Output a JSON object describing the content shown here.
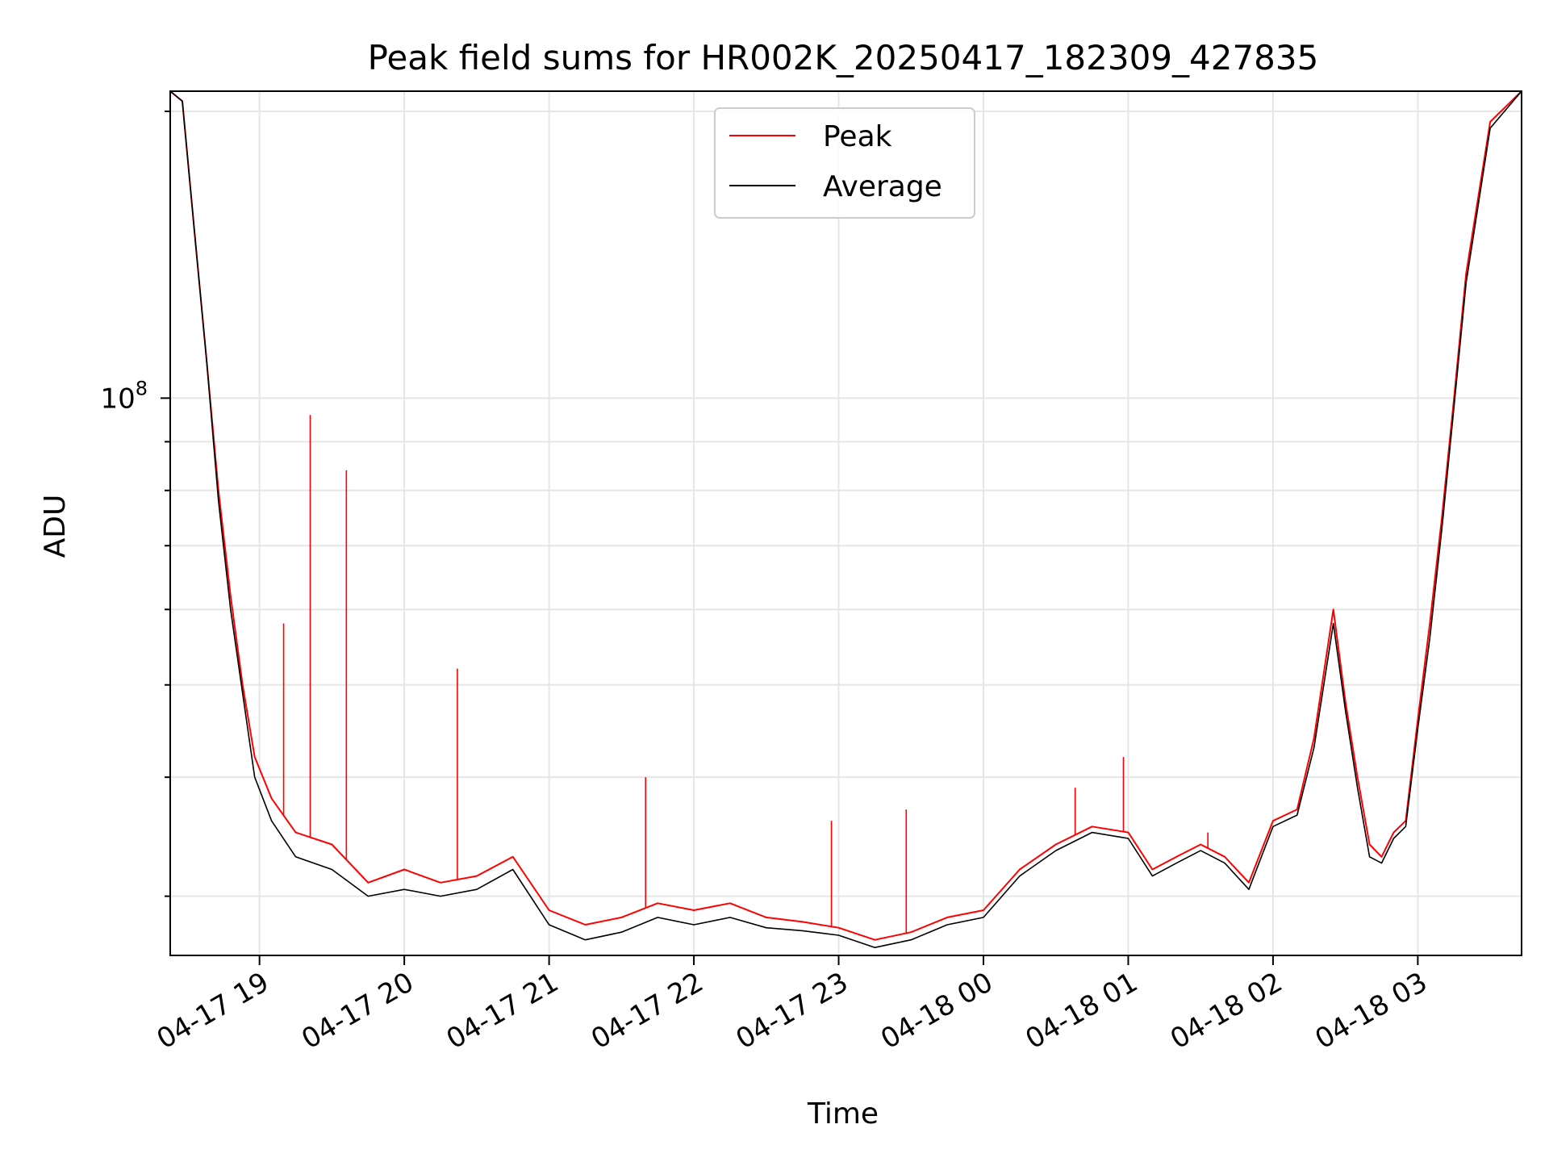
{
  "chart_data": {
    "type": "line",
    "title": "Peak field sums for HR002K_20250417_182309_427835",
    "xlabel": "Time",
    "ylabel": "ADU",
    "y_scale": "log",
    "y_major_tick_label_base": "10",
    "y_major_tick_label_exp": "8",
    "ylim": [
      26000000,
      210000000
    ],
    "xlim": [
      "2025-04-17 18:23",
      "2025-04-18 03:43"
    ],
    "x_tick_labels": [
      "04-17 19",
      "04-17 20",
      "04-17 21",
      "04-17 22",
      "04-17 23",
      "04-18 00",
      "04-18 01",
      "04-18 02",
      "04-18 03"
    ],
    "x_ticks": [
      "2025-04-17 19:00",
      "2025-04-17 20:00",
      "2025-04-17 21:00",
      "2025-04-17 22:00",
      "2025-04-17 23:00",
      "2025-04-18 00:00",
      "2025-04-18 01:00",
      "2025-04-18 02:00",
      "2025-04-18 03:00"
    ],
    "grid": true,
    "legend_position": "top-center",
    "series": [
      {
        "name": "Peak",
        "color": "#ff0000",
        "x": [
          "2025-04-17 18:23",
          "2025-04-17 18:28",
          "2025-04-17 18:33",
          "2025-04-17 18:38",
          "2025-04-17 18:43",
          "2025-04-17 18:48",
          "2025-04-17 18:53",
          "2025-04-17 18:58",
          "2025-04-17 19:05",
          "2025-04-17 19:15",
          "2025-04-17 19:30",
          "2025-04-17 19:45",
          "2025-04-17 20:00",
          "2025-04-17 20:15",
          "2025-04-17 20:30",
          "2025-04-17 20:45",
          "2025-04-17 21:00",
          "2025-04-17 21:15",
          "2025-04-17 21:30",
          "2025-04-17 21:45",
          "2025-04-17 22:00",
          "2025-04-17 22:15",
          "2025-04-17 22:30",
          "2025-04-17 22:45",
          "2025-04-17 23:00",
          "2025-04-17 23:15",
          "2025-04-17 23:30",
          "2025-04-17 23:45",
          "2025-04-18 00:00",
          "2025-04-18 00:15",
          "2025-04-18 00:30",
          "2025-04-18 00:45",
          "2025-04-18 01:00",
          "2025-04-18 01:10",
          "2025-04-18 01:20",
          "2025-04-18 01:30",
          "2025-04-18 01:40",
          "2025-04-18 01:50",
          "2025-04-18 02:00",
          "2025-04-18 02:10",
          "2025-04-18 02:17",
          "2025-04-18 02:25",
          "2025-04-18 02:30",
          "2025-04-18 02:35",
          "2025-04-18 02:40",
          "2025-04-18 02:45",
          "2025-04-18 02:50",
          "2025-04-18 02:55",
          "2025-04-18 03:00",
          "2025-04-18 03:05",
          "2025-04-18 03:10",
          "2025-04-18 03:15",
          "2025-04-18 03:20",
          "2025-04-18 03:30",
          "2025-04-18 03:43"
        ],
        "values": [
          210000000,
          205000000,
          150000000,
          110000000,
          80000000,
          62000000,
          50000000,
          42000000,
          38000000,
          35000000,
          34000000,
          31000000,
          32000000,
          31000000,
          31500000,
          33000000,
          29000000,
          28000000,
          28500000,
          29500000,
          29000000,
          29500000,
          28500000,
          28200000,
          27800000,
          27000000,
          27500000,
          28500000,
          29000000,
          32000000,
          34000000,
          35500000,
          35000000,
          32000000,
          33000000,
          34000000,
          33000000,
          31000000,
          36000000,
          37000000,
          44000000,
          60000000,
          48000000,
          40000000,
          34000000,
          33000000,
          35000000,
          36000000,
          46000000,
          58000000,
          75000000,
          100000000,
          135000000,
          195000000,
          210000000
        ]
      },
      {
        "name": "Average",
        "color": "#000000",
        "x": [
          "2025-04-17 18:23",
          "2025-04-17 18:28",
          "2025-04-17 18:33",
          "2025-04-17 18:38",
          "2025-04-17 18:43",
          "2025-04-17 18:48",
          "2025-04-17 18:53",
          "2025-04-17 18:58",
          "2025-04-17 19:05",
          "2025-04-17 19:15",
          "2025-04-17 19:30",
          "2025-04-17 19:45",
          "2025-04-17 20:00",
          "2025-04-17 20:15",
          "2025-04-17 20:30",
          "2025-04-17 20:45",
          "2025-04-17 21:00",
          "2025-04-17 21:15",
          "2025-04-17 21:30",
          "2025-04-17 21:45",
          "2025-04-17 22:00",
          "2025-04-17 22:15",
          "2025-04-17 22:30",
          "2025-04-17 22:45",
          "2025-04-17 23:00",
          "2025-04-17 23:15",
          "2025-04-17 23:30",
          "2025-04-17 23:45",
          "2025-04-18 00:00",
          "2025-04-18 00:15",
          "2025-04-18 00:30",
          "2025-04-18 00:45",
          "2025-04-18 01:00",
          "2025-04-18 01:10",
          "2025-04-18 01:20",
          "2025-04-18 01:30",
          "2025-04-18 01:40",
          "2025-04-18 01:50",
          "2025-04-18 02:00",
          "2025-04-18 02:10",
          "2025-04-18 02:17",
          "2025-04-18 02:25",
          "2025-04-18 02:30",
          "2025-04-18 02:35",
          "2025-04-18 02:40",
          "2025-04-18 02:45",
          "2025-04-18 02:50",
          "2025-04-18 02:55",
          "2025-04-18 03:00",
          "2025-04-18 03:05",
          "2025-04-18 03:10",
          "2025-04-18 03:15",
          "2025-04-18 03:20",
          "2025-04-18 03:30",
          "2025-04-18 03:43"
        ],
        "values": [
          210000000,
          205000000,
          150000000,
          110000000,
          78000000,
          60000000,
          49000000,
          40000000,
          36000000,
          33000000,
          32000000,
          30000000,
          30500000,
          30000000,
          30500000,
          32000000,
          28000000,
          27000000,
          27500000,
          28500000,
          28000000,
          28500000,
          27800000,
          27600000,
          27300000,
          26500000,
          27000000,
          28000000,
          28500000,
          31500000,
          33500000,
          35000000,
          34500000,
          31500000,
          32500000,
          33500000,
          32500000,
          30500000,
          35500000,
          36500000,
          43000000,
          58000000,
          47000000,
          39000000,
          33000000,
          32500000,
          34500000,
          35500000,
          45000000,
          56000000,
          73000000,
          98000000,
          132000000,
          192000000,
          210000000
        ]
      }
    ],
    "spikes": [
      {
        "x": "2025-04-17 19:10",
        "value": 58000000
      },
      {
        "x": "2025-04-17 19:21",
        "value": 96000000
      },
      {
        "x": "2025-04-17 19:36",
        "value": 84000000
      },
      {
        "x": "2025-04-17 20:22",
        "value": 52000000
      },
      {
        "x": "2025-04-17 21:40",
        "value": 40000000
      },
      {
        "x": "2025-04-17 22:57",
        "value": 36000000
      },
      {
        "x": "2025-04-17 23:28",
        "value": 37000000
      },
      {
        "x": "2025-04-18 00:38",
        "value": 39000000
      },
      {
        "x": "2025-04-18 00:58",
        "value": 42000000
      },
      {
        "x": "2025-04-18 01:33",
        "value": 35000000
      }
    ]
  }
}
